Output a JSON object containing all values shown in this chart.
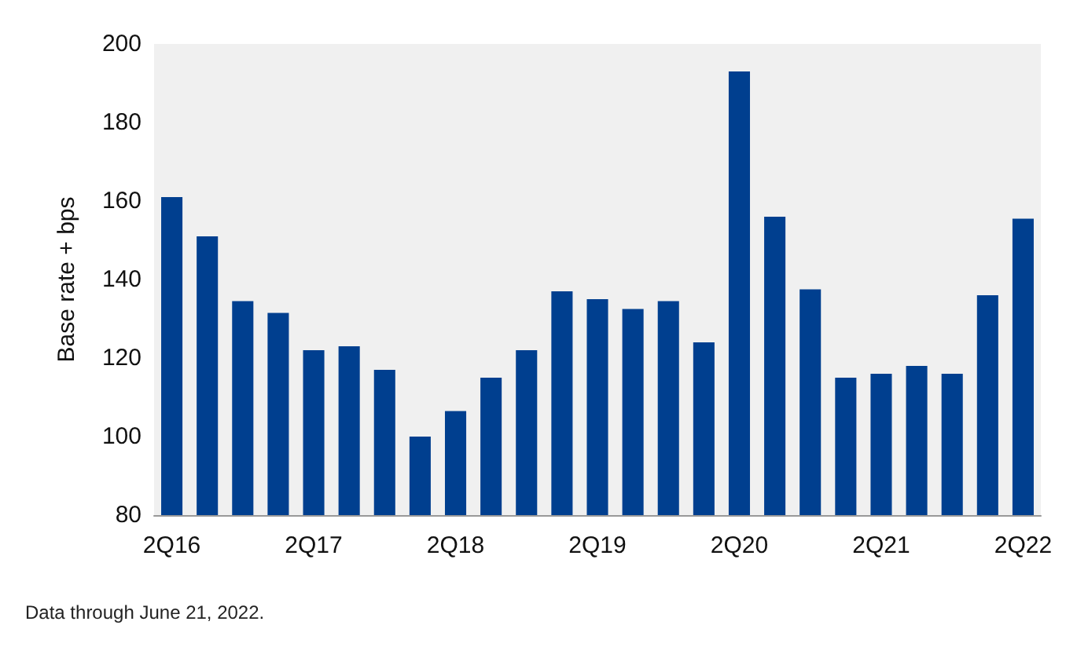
{
  "chart_data": {
    "type": "bar",
    "ylabel": "Base rate + bps",
    "categories": [
      "2Q16",
      null,
      null,
      null,
      "2Q17",
      null,
      null,
      null,
      "2Q18",
      null,
      null,
      null,
      "2Q19",
      null,
      null,
      null,
      "2Q20",
      null,
      null,
      null,
      "2Q21",
      null,
      null,
      null,
      "2Q22"
    ],
    "values": [
      161,
      151,
      134.5,
      131.5,
      122,
      123,
      117,
      100,
      106.5,
      115,
      122,
      137,
      135,
      132.5,
      134.5,
      124,
      193,
      156,
      137.5,
      115,
      116,
      118,
      116,
      136,
      155.5
    ],
    "color": "#003f8f",
    "ylim": [
      80,
      200
    ],
    "yticks": [
      80,
      100,
      120,
      140,
      160,
      180,
      200
    ],
    "grid": false,
    "annotations": [
      "Data through June 21, 2022."
    ]
  }
}
